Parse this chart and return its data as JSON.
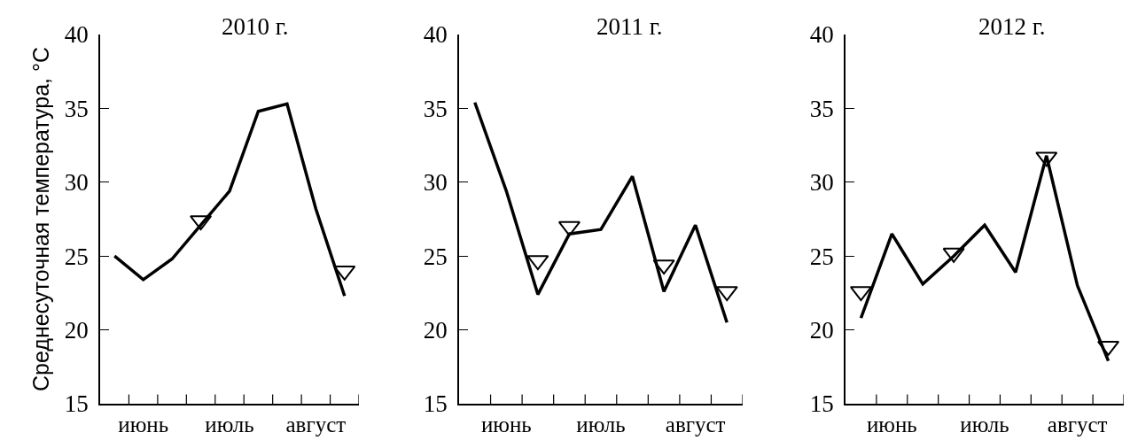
{
  "chart_data": [
    {
      "type": "line",
      "title": "2010 г.",
      "ylabel": "Среднесуточная температура, °C",
      "categories": [
        null,
        "июнь",
        null,
        null,
        "июль",
        null,
        null,
        "август",
        null
      ],
      "series": [
        {
          "color": "#000000",
          "values": [
            25.0,
            23.4,
            24.8,
            27.1,
            29.4,
            34.8,
            35.3,
            28.2,
            22.3
          ]
        },
        {
          "type": "scatter",
          "marker": "triangle",
          "color": "#000000",
          "values": [
            null,
            null,
            null,
            27.4,
            null,
            null,
            null,
            null,
            24.0
          ]
        }
      ],
      "ylim": [
        15,
        40
      ],
      "yticks": [
        15,
        20,
        25,
        30,
        35,
        40
      ]
    },
    {
      "type": "line",
      "title": "2011 г.",
      "categories": [
        null,
        "июнь",
        null,
        null,
        "июль",
        null,
        null,
        "август",
        null
      ],
      "series": [
        {
          "color": "#000000",
          "values": [
            35.4,
            29.4,
            22.4,
            26.5,
            26.8,
            30.4,
            22.6,
            27.1,
            20.5
          ]
        },
        {
          "type": "scatter",
          "marker": "triangle",
          "color": "#000000",
          "values": [
            null,
            null,
            24.7,
            27.0,
            null,
            null,
            24.4,
            null,
            22.6
          ]
        }
      ],
      "ylim": [
        15,
        40
      ],
      "yticks": [
        15,
        20,
        25,
        30,
        35,
        40
      ]
    },
    {
      "type": "line",
      "title": "2012 г.",
      "categories": [
        null,
        "июнь",
        null,
        null,
        "июль",
        null,
        null,
        "август",
        null
      ],
      "series": [
        {
          "color": "#000000",
          "values": [
            20.8,
            26.5,
            23.1,
            25.0,
            27.1,
            23.9,
            31.8,
            23.0,
            17.9
          ]
        },
        {
          "type": "scatter",
          "marker": "triangle",
          "color": "#000000",
          "values": [
            22.6,
            null,
            null,
            25.2,
            null,
            null,
            31.7,
            null,
            18.9
          ]
        }
      ],
      "ylim": [
        15,
        40
      ],
      "yticks": [
        15,
        20,
        25,
        30,
        35,
        40
      ]
    }
  ]
}
